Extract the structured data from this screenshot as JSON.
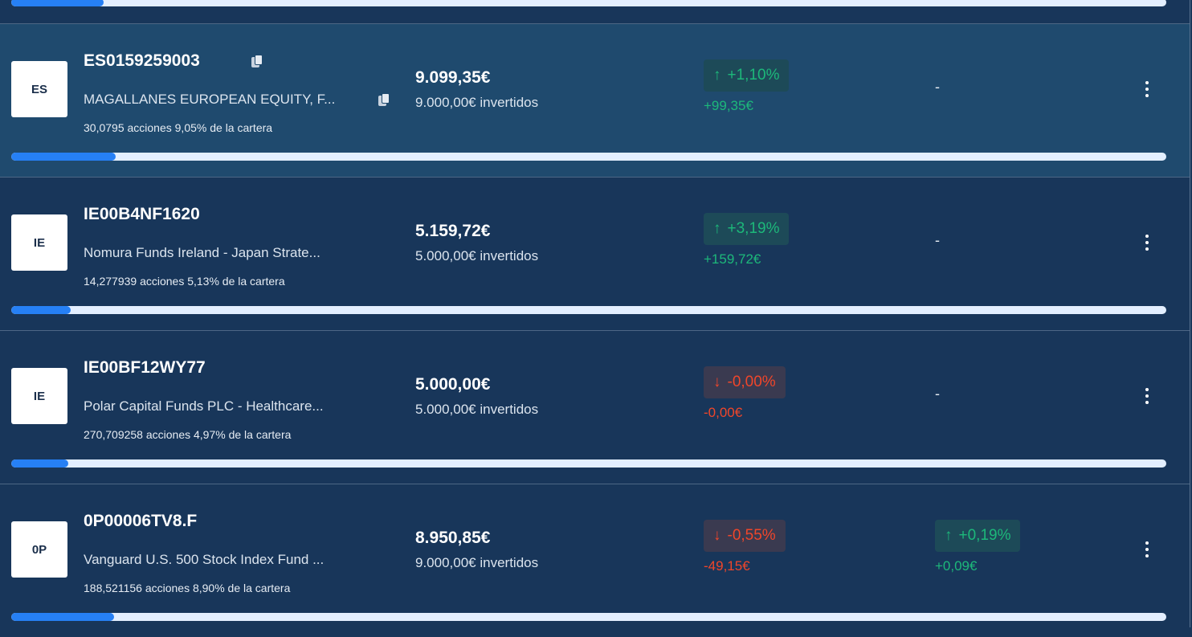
{
  "top_progress": 0.08,
  "holdings": [
    {
      "logo": "ES",
      "isin": "ES0159259003",
      "name": "MAGALLANES EUROPEAN EQUITY, F...",
      "shares": "30,0795 acciones 9,05% de la cartera",
      "value": "9.099,35€",
      "invested": "9.000,00€ invertidos",
      "change_pct": "+1,10%",
      "change_amt": "+99,35€",
      "change_dir": "up",
      "day_pct": null,
      "day_amt": null,
      "day_dir": null,
      "day_empty": "-",
      "portfolio_share": 0.0905,
      "hovered": true
    },
    {
      "logo": "IE",
      "isin": "IE00B4NF1620",
      "name": "Nomura Funds Ireland - Japan Strate...",
      "shares": "14,277939 acciones 5,13% de la cartera",
      "value": "5.159,72€",
      "invested": "5.000,00€ invertidos",
      "change_pct": "+3,19%",
      "change_amt": "+159,72€",
      "change_dir": "up",
      "day_pct": null,
      "day_amt": null,
      "day_dir": null,
      "day_empty": "-",
      "portfolio_share": 0.0513,
      "hovered": false
    },
    {
      "logo": "IE",
      "isin": "IE00BF12WY77",
      "name": "Polar Capital Funds PLC - Healthcare...",
      "shares": "270,709258 acciones 4,97% de la cartera",
      "value": "5.000,00€",
      "invested": "5.000,00€ invertidos",
      "change_pct": "-0,00%",
      "change_amt": "-0,00€",
      "change_dir": "down",
      "day_pct": null,
      "day_amt": null,
      "day_dir": null,
      "day_empty": "-",
      "portfolio_share": 0.0497,
      "hovered": false
    },
    {
      "logo": "0P",
      "isin": "0P00006TV8.F",
      "name": "Vanguard U.S. 500 Stock Index Fund ...",
      "shares": "188,521156 acciones 8,90% de la cartera",
      "value": "8.950,85€",
      "invested": "9.000,00€ invertidos",
      "change_pct": "-0,55%",
      "change_amt": "-49,15€",
      "change_dir": "down",
      "day_pct": "+0,19%",
      "day_amt": "+0,09€",
      "day_dir": "up",
      "day_empty": null,
      "portfolio_share": 0.089,
      "hovered": false
    }
  ],
  "colors": {
    "background": "#18365a",
    "hover": "#1f4a6e",
    "up": "#1db87a",
    "down": "#f0462a",
    "progress": "#2680f5"
  }
}
